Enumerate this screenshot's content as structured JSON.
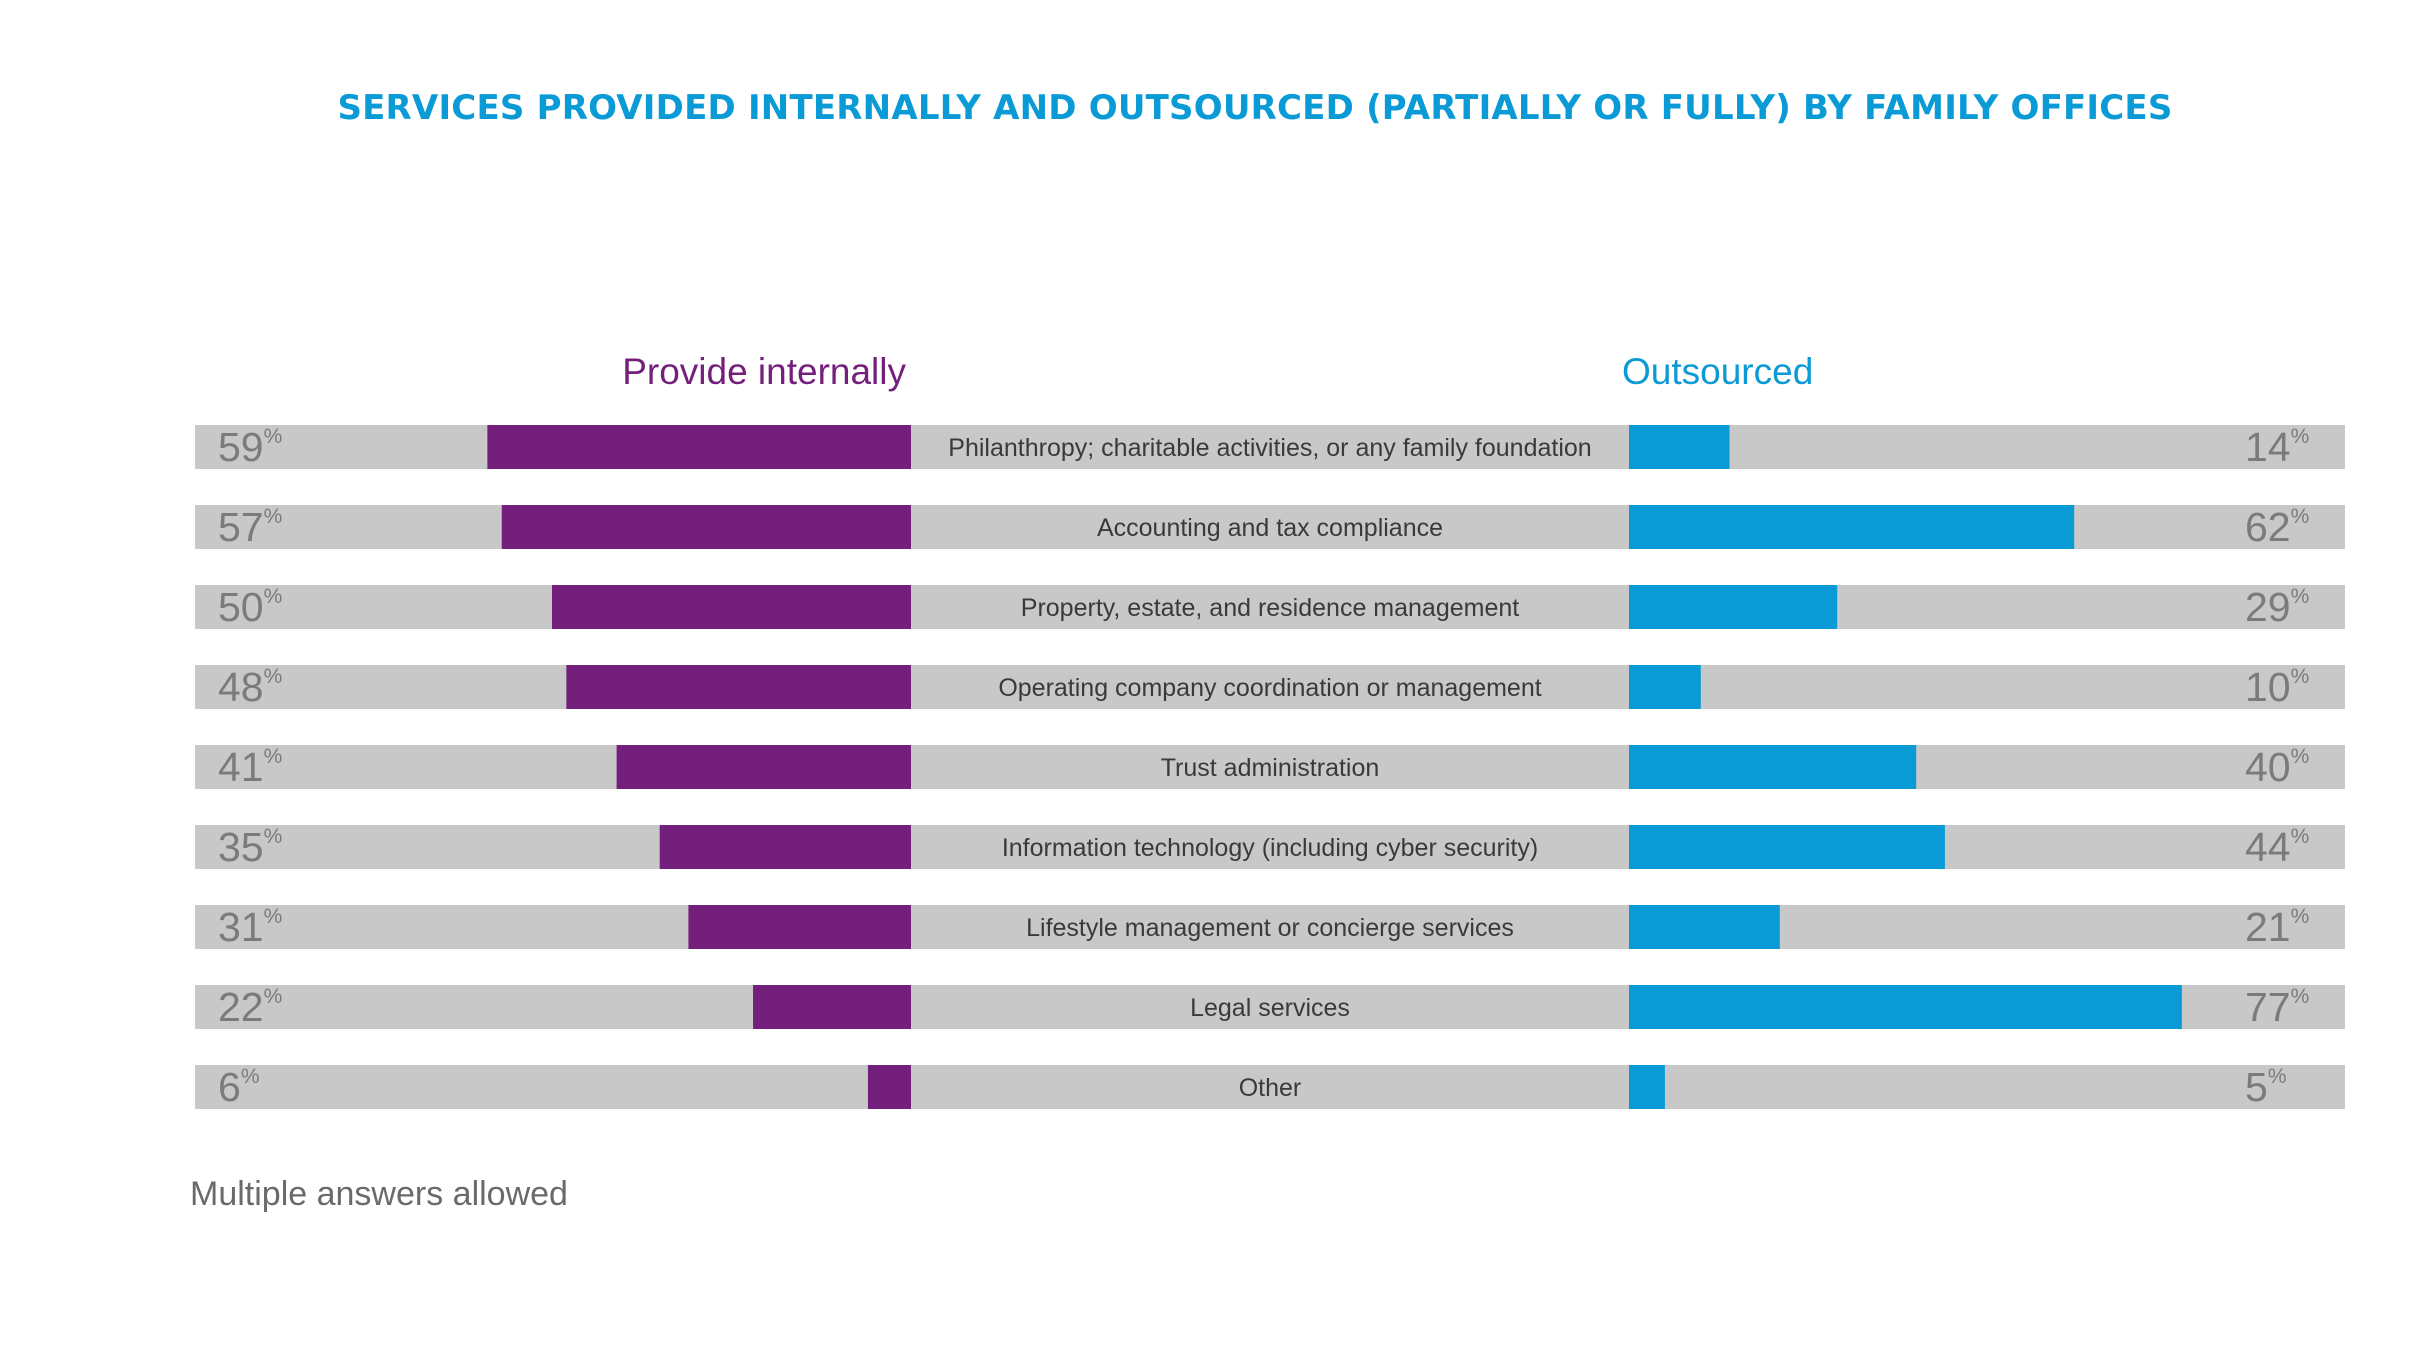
{
  "chart_data": {
    "type": "bar",
    "title": "SERVICES PROVIDED INTERNALLY AND OUTSOURCED (PARTIALLY OR FULLY) BY FAMILY OFFICES",
    "categories": [
      "Philanthropy; charitable activities, or any family foundation",
      "Accounting and tax compliance",
      "Property, estate, and residence management",
      "Operating company coordination or management",
      "Trust administration",
      "Information technology (including cyber security)",
      "Lifestyle management or concierge services",
      "Legal services",
      "Other"
    ],
    "series": [
      {
        "name": "Provide internally",
        "values": [
          59,
          57,
          50,
          48,
          41,
          35,
          31,
          22,
          6
        ]
      },
      {
        "name": "Outsourced",
        "values": [
          14,
          62,
          29,
          10,
          40,
          44,
          21,
          77,
          5
        ]
      }
    ],
    "value_suffix": "%",
    "xlim": [
      0,
      100
    ],
    "grid": false,
    "footnote": "Multiple answers allowed",
    "colors": {
      "internal": "#741f7c",
      "outsourced": "#0a9bd6",
      "track": "#c8c8c8",
      "title": "#0a9bd6"
    }
  }
}
